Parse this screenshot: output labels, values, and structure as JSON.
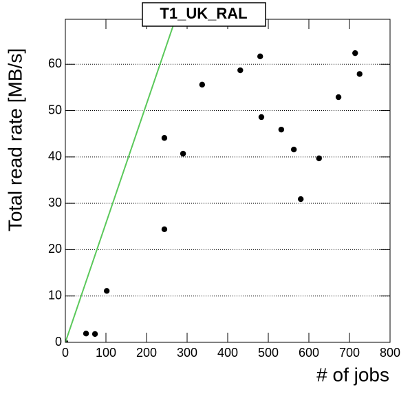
{
  "chart_data": {
    "type": "scatter",
    "title": "T1_UK_RAL",
    "x_label": "# of jobs",
    "y_label": "Total read rate [MB/s]",
    "xlim": [
      0,
      800
    ],
    "ylim": [
      0,
      69.7
    ],
    "xticks": [
      0,
      100,
      200,
      300,
      400,
      500,
      600,
      700,
      800
    ],
    "yticks": [
      0,
      10,
      20,
      30,
      40,
      50,
      60
    ],
    "grid": true,
    "series": [
      {
        "type": "scatter",
        "color": "#000000",
        "x": [
          0,
          51,
          73,
          102,
          244,
          244,
          290,
          337,
          431,
          480,
          483,
          532,
          563,
          580,
          625,
          673,
          714,
          725
        ],
        "values": [
          0,
          1.9,
          1.8,
          11.1,
          24.4,
          44.1,
          40.7,
          55.6,
          58.7,
          61.7,
          48.6,
          45.9,
          41.6,
          30.9,
          39.7,
          52.9,
          62.4,
          57.9
        ]
      },
      {
        "type": "line",
        "color": "#5ac85a",
        "x": [
          0,
          271
        ],
        "values": [
          0,
          69.7
        ]
      }
    ]
  }
}
